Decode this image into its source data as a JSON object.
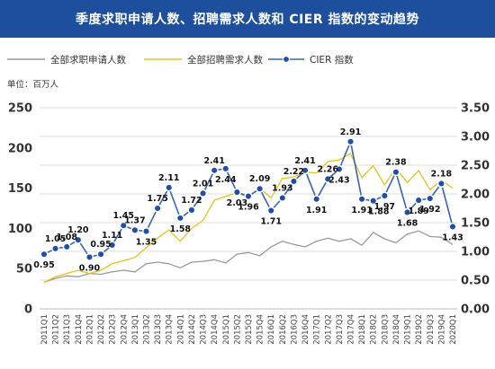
{
  "title": "季度求职申请人数、招聘需求人数和 CIER 指数的变动趋势",
  "colors": {
    "title_bg": "#1d4f9c",
    "applicants": "#9a9a9a",
    "openings": "#e5c31f",
    "cier": "#3a63b8",
    "cier_marker": "#1f4fa8",
    "grid": "#dddddd"
  },
  "chart_data": {
    "type": "line",
    "title": "季度求职申请人数、招聘需求人数和 CIER 指数的变动趋势",
    "unit": "单位：百万人",
    "grid": true,
    "legend_placement": "top",
    "categories": [
      "2011Q1",
      "2011Q2",
      "2011Q3",
      "2011Q4",
      "2012Q1",
      "2012Q2",
      "2012Q3",
      "2012Q4",
      "2013Q1",
      "2013Q2",
      "2013Q3",
      "2013Q4",
      "2014Q1",
      "2014Q2",
      "2014Q3",
      "2014Q4",
      "2015Q1",
      "2015Q2",
      "2015Q3",
      "2015Q4",
      "2016Q1",
      "2016Q2",
      "2016Q3",
      "2016Q4",
      "2017Q1",
      "2017Q2",
      "2017Q3",
      "2017Q4",
      "2018Q1",
      "2018Q2",
      "2018Q3",
      "2018Q4",
      "2019Q1",
      "2019Q2",
      "2019Q3",
      "2019Q4",
      "2020Q1"
    ],
    "left_axis": {
      "min": 0,
      "max": 250,
      "ticks": [
        "0",
        "50",
        "100",
        "150",
        "200",
        "250"
      ]
    },
    "right_axis": {
      "min": 0,
      "max": 3.5,
      "ticks": [
        "0.00",
        "0.50",
        "1.00",
        "1.50",
        "2.00",
        "2.50",
        "3.00",
        "3.50"
      ]
    },
    "series": [
      {
        "name": "全部求职申请人数",
        "axis": "left",
        "values": [
          33,
          38,
          41,
          40,
          44,
          43,
          46,
          48,
          46,
          56,
          58,
          56,
          51,
          58,
          59,
          61,
          57,
          68,
          70,
          66,
          77,
          84,
          80,
          77,
          84,
          88,
          84,
          87,
          79,
          95,
          87,
          82,
          93,
          97,
          90,
          89,
          80
        ]
      },
      {
        "name": "全部招聘需求人数",
        "axis": "left",
        "values": [
          33,
          40,
          44,
          48,
          44,
          48,
          56,
          60,
          64,
          76,
          88,
          98,
          84,
          100,
          110,
          135,
          140,
          144,
          139,
          150,
          138,
          162,
          164,
          170,
          169,
          183,
          185,
          193,
          163,
          178,
          154,
          175,
          157,
          172,
          148,
          160,
          150
        ]
      },
      {
        "name": "CIER 指数",
        "axis": "right",
        "values": [
          0.95,
          1.05,
          1.08,
          1.2,
          0.9,
          0.95,
          1.11,
          1.45,
          1.37,
          1.35,
          1.75,
          2.11,
          1.58,
          1.72,
          2.01,
          2.41,
          2.44,
          2.03,
          1.96,
          2.09,
          1.71,
          1.93,
          2.22,
          2.41,
          1.91,
          2.26,
          2.43,
          2.91,
          1.91,
          1.88,
          1.97,
          2.38,
          1.68,
          1.89,
          1.92,
          2.18,
          1.43
        ],
        "labels": [
          "0.95",
          "1.05",
          "1.08",
          "1.20",
          "0.90",
          "0.95",
          "1.11",
          "1.45",
          "1.37",
          "1.35",
          "1.75",
          "2.11",
          "1.58",
          "1.72",
          "2.01",
          "2.41",
          "2.44",
          "2.03",
          "1.96",
          "2.09",
          "1.71",
          "1.93",
          "2.22",
          "2.41",
          "1.91",
          "2.26",
          "2.43",
          "2.91",
          "1.91",
          "1.88",
          "1.97",
          "2.38",
          "1.68",
          "1.89",
          "1.92",
          "2.18",
          "1.43"
        ]
      }
    ]
  }
}
